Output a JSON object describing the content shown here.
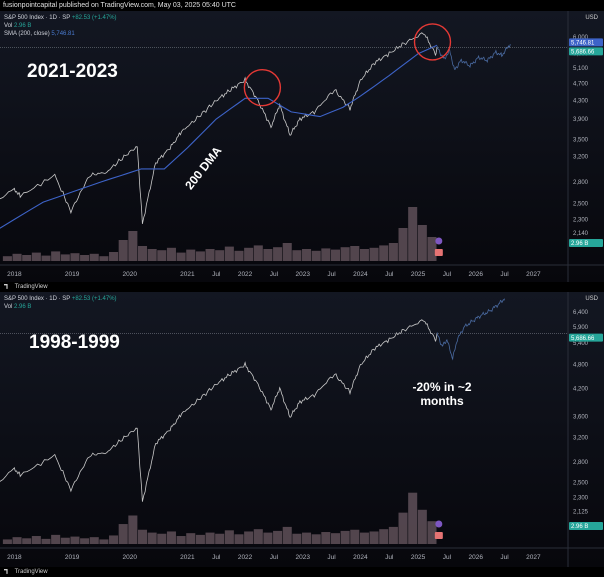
{
  "publish_line": "fusionpointcapital published on TradingView.com, May 03, 2025 05:40 UTC",
  "tv_brand": "TradingView",
  "panels": [
    {
      "header": {
        "symbol": "S&P 500 Index · 1D · SP",
        "change": "+82.53 (+1.47%)",
        "vol_label": "Vol",
        "vol_value": "2.96 B",
        "sma_label": "SMA (200, close)",
        "sma_value": "5,746.81"
      },
      "big_label": "2021-2023",
      "line_annotation": "200 DMA",
      "currency": "USD"
    },
    {
      "header": {
        "symbol": "S&P 500 Index · 1D · SP",
        "change": "+82.53 (+1.47%)",
        "vol_label": "Vol",
        "vol_value": "2.96 B"
      },
      "big_label": "1998-1999",
      "annotation": "-20% in ~2 months",
      "currency": "USD"
    }
  ],
  "colors": {
    "background_top": "#131722",
    "background_bottom": "#07070c",
    "price_line": "#c9c9c9",
    "projection_line": "#4d6fa8",
    "sma_line": "#3d63c8",
    "circle": "#e53935",
    "current_price_tag": "#26a69a",
    "volume_bar": "#6b5a63"
  },
  "chart_data": [
    {
      "type": "line",
      "title": "S&P 500 Index · 1D · SP",
      "x_ticks": [
        "2018",
        "2019",
        "2020",
        "2021",
        "Jul",
        "2022",
        "Jul",
        "2023",
        "Jul",
        "2024",
        "Jul",
        "2025",
        "Jul",
        "2026",
        "Jul",
        "2027"
      ],
      "y_ticks": [
        2140,
        2300,
        2500,
        2800,
        3200,
        3500,
        3900,
        4300,
        4700,
        5100,
        5500,
        6000
      ],
      "y_scale": "log",
      "ylim": [
        2000,
        6600
      ],
      "tags": {
        "sma": "5,746.81",
        "price": "5,686.66",
        "volume": "2.96 B"
      },
      "series": [
        {
          "values": [
            [
              2017.5,
              2450
            ],
            [
              2018.0,
              2700
            ],
            [
              2018.1,
              2600
            ],
            [
              2018.7,
              2900
            ],
            [
              2018.98,
              2400
            ],
            [
              2019.3,
              2900
            ],
            [
              2019.6,
              2950
            ],
            [
              2019.9,
              3200
            ],
            [
              2020.13,
              3380
            ],
            [
              2020.22,
              2250
            ],
            [
              2020.45,
              3100
            ],
            [
              2020.7,
              3350
            ],
            [
              2020.9,
              3650
            ],
            [
              2021.2,
              3950
            ],
            [
              2021.5,
              4300
            ],
            [
              2021.75,
              4550
            ],
            [
              2022.0,
              4790
            ],
            [
              2022.2,
              4350
            ],
            [
              2022.45,
              3750
            ],
            [
              2022.6,
              4200
            ],
            [
              2022.78,
              3580
            ],
            [
              2022.95,
              3900
            ],
            [
              2023.2,
              4050
            ],
            [
              2023.55,
              4550
            ],
            [
              2023.82,
              4120
            ],
            [
              2024.0,
              4780
            ],
            [
              2024.25,
              5250
            ],
            [
              2024.5,
              5500
            ],
            [
              2024.75,
              5800
            ],
            [
              2025.1,
              6130
            ],
            [
              2025.3,
              5500
            ],
            [
              2025.33,
              5680
            ]
          ]
        },
        {
          "values": [
            [
              2025.33,
              5680
            ],
            [
              2025.45,
              5350
            ],
            [
              2025.55,
              5600
            ],
            [
              2025.63,
              5050
            ],
            [
              2025.75,
              5320
            ],
            [
              2025.9,
              5150
            ],
            [
              2026.05,
              5400
            ],
            [
              2026.2,
              5300
            ],
            [
              2026.35,
              5550
            ],
            [
              2026.45,
              5450
            ],
            [
              2026.6,
              5780
            ]
          ]
        },
        {
          "name": "SMA (200, close)",
          "values": [
            [
              2017.5,
              2100
            ],
            [
              2018.5,
              2520
            ],
            [
              2019.5,
              2800
            ],
            [
              2020.2,
              3000
            ],
            [
              2020.6,
              3000
            ],
            [
              2021.0,
              3350
            ],
            [
              2021.5,
              3900
            ],
            [
              2022.0,
              4350
            ],
            [
              2022.4,
              4350
            ],
            [
              2022.8,
              4050
            ],
            [
              2023.3,
              3950
            ],
            [
              2023.7,
              4150
            ],
            [
              2024.0,
              4400
            ],
            [
              2024.5,
              4900
            ],
            [
              2025.0,
              5500
            ],
            [
              2025.33,
              5746.81
            ]
          ]
        }
      ],
      "volume": [
        0.08,
        0.12,
        0.1,
        0.14,
        0.09,
        0.16,
        0.11,
        0.13,
        0.1,
        0.12,
        0.08,
        0.15,
        0.35,
        0.5,
        0.25,
        0.2,
        0.18,
        0.22,
        0.14,
        0.19,
        0.16,
        0.2,
        0.18,
        0.24,
        0.17,
        0.22,
        0.26,
        0.2,
        0.23,
        0.3,
        0.18,
        0.2,
        0.17,
        0.21,
        0.19,
        0.23,
        0.25,
        0.2,
        0.22,
        0.26,
        0.3,
        0.55,
        0.9,
        0.6,
        0.4
      ]
    },
    {
      "type": "line",
      "title": "S&P 500 Index · 1D · SP",
      "x_ticks": [
        "2018",
        "2019",
        "2020",
        "2021",
        "Jul",
        "2022",
        "Jul",
        "2023",
        "Jul",
        "2024",
        "Jul",
        "2025",
        "Jul",
        "2026",
        "Jul",
        "2027"
      ],
      "y_ticks": [
        1965,
        2125,
        2300,
        2500,
        2800,
        3200,
        3600,
        4200,
        4800,
        5400,
        5900,
        6400
      ],
      "y_scale": "log",
      "ylim": [
        1900,
        7000
      ],
      "tags": {
        "price": "5,686.66",
        "volume": "2.96 B"
      },
      "series": [
        {
          "values": [
            [
              2017.5,
              2350
            ],
            [
              2018.0,
              2700
            ],
            [
              2018.1,
              2600
            ],
            [
              2018.7,
              2900
            ],
            [
              2018.98,
              2400
            ],
            [
              2019.3,
              2900
            ],
            [
              2019.6,
              2950
            ],
            [
              2019.9,
              3200
            ],
            [
              2020.13,
              3380
            ],
            [
              2020.22,
              2250
            ],
            [
              2020.45,
              3100
            ],
            [
              2020.7,
              3350
            ],
            [
              2020.9,
              3650
            ],
            [
              2021.2,
              3950
            ],
            [
              2021.5,
              4300
            ],
            [
              2021.75,
              4550
            ],
            [
              2022.0,
              4790
            ],
            [
              2022.2,
              4350
            ],
            [
              2022.45,
              3750
            ],
            [
              2022.6,
              4200
            ],
            [
              2022.78,
              3580
            ],
            [
              2022.95,
              3900
            ],
            [
              2023.2,
              4050
            ],
            [
              2023.55,
              4550
            ],
            [
              2023.82,
              4120
            ],
            [
              2024.0,
              4780
            ],
            [
              2024.25,
              5250
            ],
            [
              2024.5,
              5500
            ],
            [
              2024.75,
              5800
            ],
            [
              2025.1,
              6130
            ],
            [
              2025.3,
              5500
            ],
            [
              2025.33,
              5680
            ]
          ]
        },
        {
          "values": [
            [
              2025.33,
              5680
            ],
            [
              2025.42,
              5300
            ],
            [
              2025.5,
              5500
            ],
            [
              2025.6,
              4950
            ],
            [
              2025.68,
              5500
            ],
            [
              2025.8,
              5900
            ],
            [
              2025.95,
              6100
            ],
            [
              2026.1,
              6300
            ],
            [
              2026.25,
              6450
            ],
            [
              2026.4,
              6700
            ],
            [
              2026.5,
              6900
            ]
          ]
        }
      ],
      "volume": [
        0.08,
        0.12,
        0.1,
        0.14,
        0.09,
        0.16,
        0.11,
        0.13,
        0.1,
        0.12,
        0.08,
        0.15,
        0.35,
        0.5,
        0.25,
        0.2,
        0.18,
        0.22,
        0.14,
        0.19,
        0.16,
        0.2,
        0.18,
        0.24,
        0.17,
        0.22,
        0.26,
        0.2,
        0.23,
        0.3,
        0.18,
        0.2,
        0.17,
        0.21,
        0.19,
        0.23,
        0.25,
        0.2,
        0.22,
        0.26,
        0.3,
        0.55,
        0.9,
        0.6,
        0.4
      ]
    }
  ]
}
